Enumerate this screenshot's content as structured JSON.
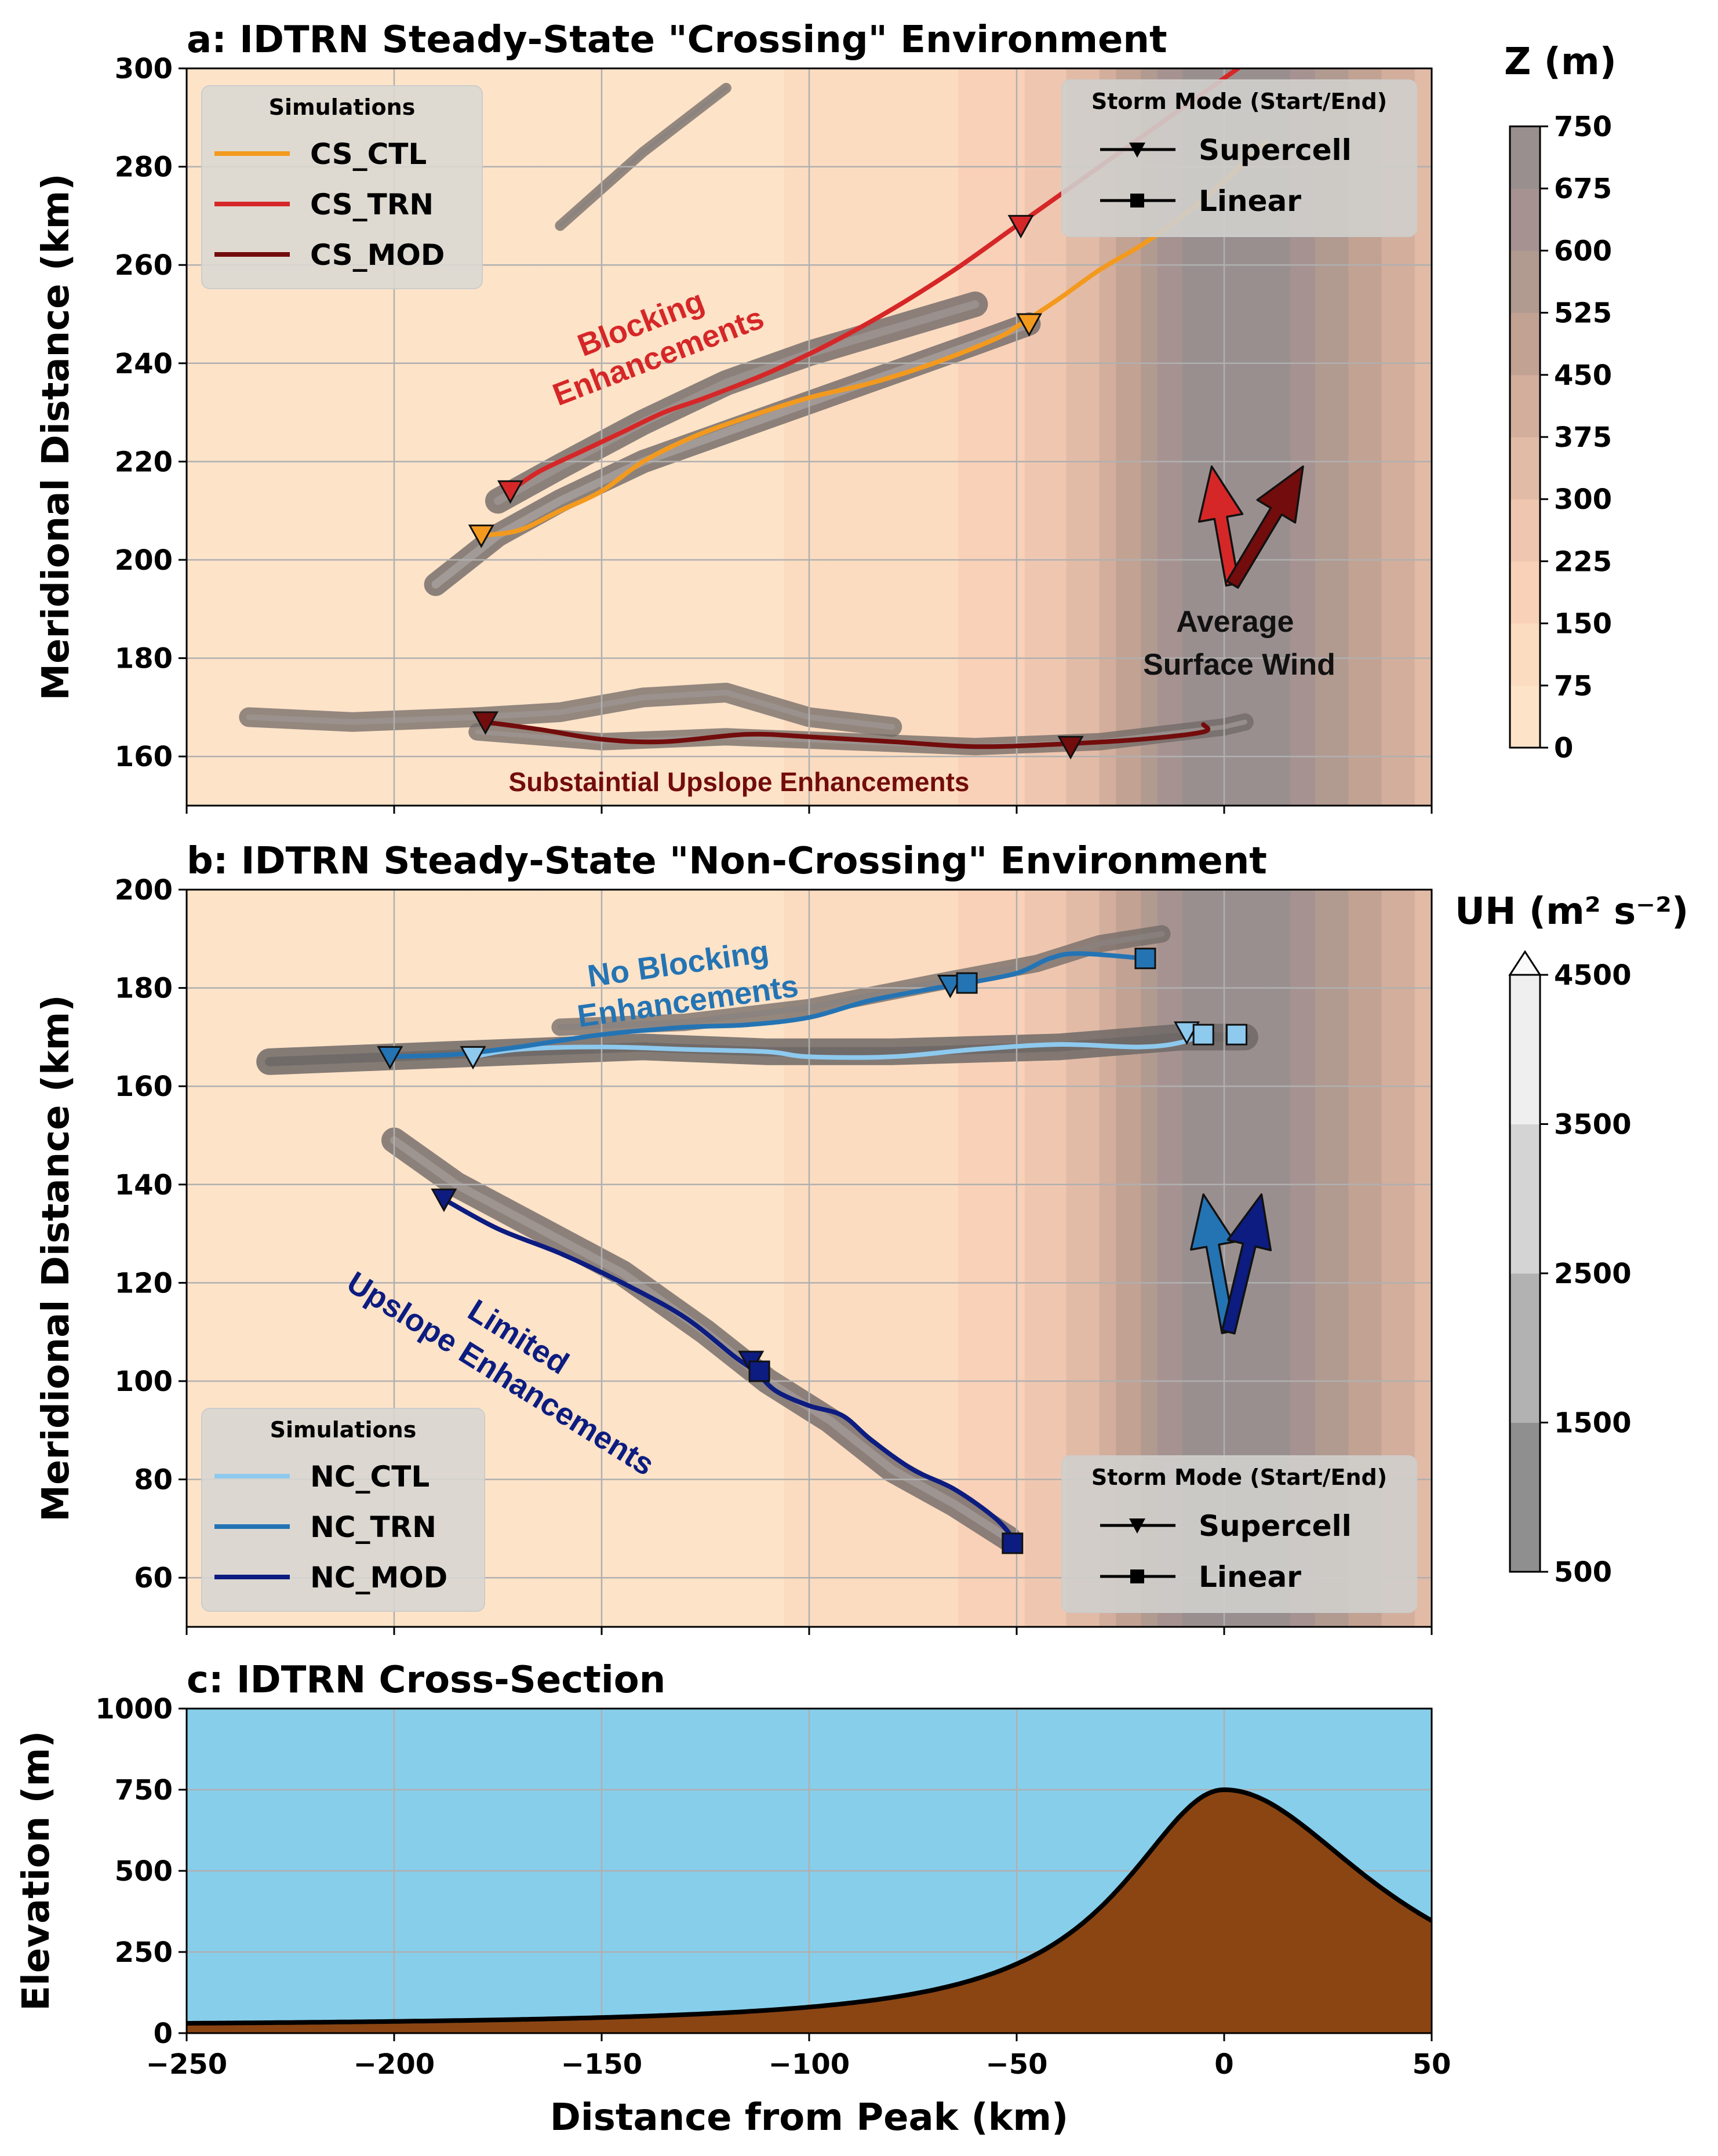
{
  "chart_data": [
    {
      "panel": "a",
      "type": "line",
      "title": "a: IDTRN Steady-State \"Crossing\" Environment",
      "xlim": [
        -250,
        50
      ],
      "ylim": [
        150,
        300
      ],
      "ylabel": "Meridional Distance (km)",
      "yticks": [
        160,
        180,
        200,
        220,
        240,
        260,
        280,
        300
      ],
      "xticks": [
        -250,
        -200,
        -150,
        -100,
        -50,
        0,
        50
      ],
      "grid": true,
      "legend_title": "Simulations",
      "legend_position": "top-left",
      "mode_legend_title": "Storm Mode (Start/End)",
      "mode_legend_position": "top-right",
      "mode_legend": [
        {
          "label": "Supercell",
          "marker": "triangle-down"
        },
        {
          "label": "Linear",
          "marker": "square"
        }
      ],
      "series": [
        {
          "name": "CS_CTL",
          "color": "#f39a1e",
          "x": [
            -179,
            -170,
            -160,
            -150,
            -140,
            -128,
            -115,
            -100,
            -85,
            -70,
            -55,
            -49,
            -40,
            -30,
            -20,
            -10,
            0,
            10
          ],
          "y": [
            205,
            206,
            210,
            214,
            220,
            225,
            229,
            233,
            236,
            240,
            245,
            248,
            253,
            259,
            264,
            270,
            277,
            285
          ],
          "markers": [
            {
              "x": -179,
              "y": 205,
              "shape": "triangle-down"
            },
            {
              "x": -47,
              "y": 248,
              "shape": "triangle-down"
            }
          ]
        },
        {
          "name": "CS_TRN",
          "color": "#d62728",
          "x": [
            -172,
            -165,
            -155,
            -145,
            -135,
            -125,
            -110,
            -95,
            -80,
            -65,
            -50,
            -35,
            -20,
            -5,
            5
          ],
          "y": [
            214,
            218,
            222,
            226,
            230,
            233,
            238,
            244,
            251,
            259,
            268,
            277,
            286,
            295,
            301
          ],
          "markers": [
            {
              "x": -172,
              "y": 214,
              "shape": "triangle-down"
            },
            {
              "x": -49,
              "y": 268,
              "shape": "triangle-down"
            }
          ]
        },
        {
          "name": "CS_MOD",
          "color": "#730c0c",
          "x": [
            -178,
            -165,
            -150,
            -135,
            -115,
            -100,
            -80,
            -60,
            -40,
            -20,
            -5,
            -5
          ],
          "y": [
            167,
            165.5,
            163.5,
            163,
            164.5,
            164,
            163,
            162,
            162.5,
            163.5,
            165,
            166.5
          ],
          "markers": [
            {
              "x": -178,
              "y": 167,
              "shape": "triangle-down"
            },
            {
              "x": -37,
              "y": 162,
              "shape": "triangle-down"
            }
          ]
        }
      ],
      "wind_arrows": [
        {
          "color": "#d62728",
          "from": [
            2,
            195
          ],
          "to": [
            -3,
            219
          ]
        },
        {
          "color": "#730c0c",
          "from": [
            2,
            195
          ],
          "to": [
            19,
            219
          ]
        }
      ],
      "annotations": [
        {
          "text": "Blocking Enhancements",
          "color": "#d62728"
        },
        {
          "text": "Average Surface Wind",
          "color": "#111111"
        },
        {
          "text": "Substaintial Upslope Enhancements",
          "color": "#730c0c"
        }
      ]
    },
    {
      "panel": "b",
      "type": "line",
      "title": "b: IDTRN Steady-State \"Non-Crossing\" Environment",
      "xlim": [
        -250,
        50
      ],
      "ylim": [
        50,
        200
      ],
      "ylabel": "Meridional Distance (km)",
      "yticks": [
        60,
        80,
        100,
        120,
        140,
        160,
        180,
        200
      ],
      "xticks": [
        -250,
        -200,
        -150,
        -100,
        -50,
        0,
        50
      ],
      "grid": true,
      "legend_title": "Simulations",
      "legend_position": "bottom-left",
      "mode_legend_title": "Storm Mode (Start/End)",
      "mode_legend_position": "bottom-right",
      "mode_legend": [
        {
          "label": "Supercell",
          "marker": "triangle-down"
        },
        {
          "label": "Linear",
          "marker": "square"
        }
      ],
      "series": [
        {
          "name": "NC_CTL",
          "color": "#8ec9ee",
          "x": [
            -181,
            -170,
            -150,
            -130,
            -110,
            -100,
            -80,
            -60,
            -40,
            -20,
            -10,
            -5
          ],
          "y": [
            166,
            167.5,
            168,
            167.5,
            167,
            166,
            166,
            167.5,
            168.5,
            168,
            169,
            171
          ],
          "markers": [
            {
              "x": -181,
              "y": 166,
              "shape": "triangle-down"
            },
            {
              "x": -9,
              "y": 171,
              "shape": "triangle-down"
            },
            {
              "x": -5,
              "y": 170.5,
              "shape": "square"
            },
            {
              "x": 3,
              "y": 170.5,
              "shape": "square"
            }
          ]
        },
        {
          "name": "NC_TRN",
          "color": "#2474b4",
          "x": [
            -201,
            -185,
            -170,
            -150,
            -130,
            -115,
            -100,
            -85,
            -66,
            -62,
            -50,
            -42,
            -35,
            -19
          ],
          "y": [
            166,
            166.5,
            168,
            170.5,
            172,
            172.5,
            174,
            177.5,
            180.5,
            181,
            183,
            186,
            187,
            186
          ],
          "markers": [
            {
              "x": -66,
              "y": 180.5,
              "shape": "triangle-down"
            },
            {
              "x": -62,
              "y": 181,
              "shape": "square"
            },
            {
              "x": -201,
              "y": 166,
              "shape": "triangle-down"
            },
            {
              "x": -19,
              "y": 186,
              "shape": "square"
            }
          ]
        },
        {
          "name": "NC_MOD",
          "color": "#0c1c80",
          "x": [
            -188,
            -175,
            -160,
            -145,
            -130,
            -118,
            -113,
            -108,
            -100,
            -92,
            -85,
            -75,
            -65,
            -55,
            -50
          ],
          "y": [
            137,
            131,
            126,
            120,
            113,
            105,
            102,
            98,
            95,
            93,
            88,
            82,
            78,
            72,
            67
          ],
          "markers": [
            {
              "x": -188,
              "y": 137,
              "shape": "triangle-down"
            },
            {
              "x": -114,
              "y": 104,
              "shape": "triangle-down"
            },
            {
              "x": -112,
              "y": 102,
              "shape": "square"
            },
            {
              "x": -51,
              "y": 67,
              "shape": "square"
            }
          ]
        }
      ],
      "wind_arrows": [
        {
          "color": "#2474b4",
          "from": [
            1,
            110
          ],
          "to": [
            -5,
            138
          ]
        },
        {
          "color": "#0c1c80",
          "from": [
            1,
            110
          ],
          "to": [
            9,
            138
          ]
        }
      ],
      "annotations": [
        {
          "text": "No Blocking Enhancements",
          "color": "#2474b4"
        },
        {
          "text": "Limited Upslope Enhancements",
          "color": "#0c1c80"
        }
      ]
    },
    {
      "panel": "c",
      "type": "area",
      "title": "c: IDTRN Cross-Section",
      "xlim": [
        -250,
        50
      ],
      "ylim": [
        0,
        1000
      ],
      "xlabel": "Distance from Peak (km)",
      "ylabel": "Elevation (m)",
      "xticks": [
        -250,
        -200,
        -150,
        -100,
        -50,
        0,
        50
      ],
      "yticks": [
        0,
        250,
        500,
        750,
        1000
      ],
      "grid": true,
      "sky_color": "#87ceeb",
      "terrain_color": "#8b4513",
      "terrain": {
        "peak_m": 750,
        "base_m": 20,
        "half_width_km": 30
      }
    }
  ],
  "colorbars": {
    "z": {
      "label": "Z (m)",
      "ticks": [
        "0",
        "75",
        "150",
        "225",
        "300",
        "375",
        "450",
        "525",
        "600",
        "675",
        "750"
      ]
    },
    "uh": {
      "label": "UH (m² s⁻²)",
      "ticks": [
        "500",
        "1500",
        "2500",
        "3500",
        "4500"
      ],
      "extend": "max"
    }
  },
  "labels": {
    "supercell": "Supercell",
    "linear": "Linear"
  }
}
